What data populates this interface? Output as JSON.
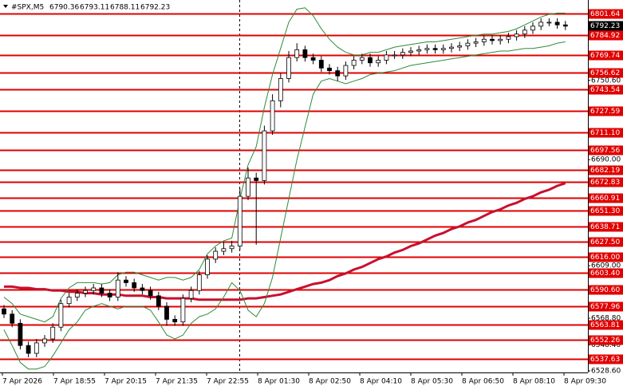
{
  "chart_data": {
    "type": "candlestick",
    "symbol": "#SPX,M5",
    "quote": [
      6790.36,
      6793.11,
      6788.11,
      6792.23
    ],
    "x_labels": [
      "7 Apr 2026",
      "7 Apr 18:55",
      "7 Apr 20:15",
      "7 Apr 21:35",
      "7 Apr 22:55",
      "8 Apr 01:30",
      "8 Apr 02:50",
      "8 Apr 04:10",
      "8 Apr 05:30",
      "8 Apr 06:50",
      "8 Apr 08:10",
      "8 Apr 09:30"
    ],
    "ylim": [
      6527.4,
      6812.0
    ],
    "yticks": [
      {
        "value": 6750.6,
        "label": "6750.60"
      },
      {
        "value": 6690,
        "label": "6690.00"
      },
      {
        "value": 6609,
        "label": "6609.00"
      },
      {
        "value": 6568.8,
        "label": "6568.80"
      },
      {
        "value": 6548.4,
        "label": "6548.40"
      },
      {
        "value": 6528.6,
        "label": "6528.60"
      }
    ],
    "levels": [
      6801.64,
      6784.92,
      6769.74,
      6756.62,
      6743.54,
      6727.59,
      {
        "value": 6711.1,
        "label": "6711.10"
      },
      6697.56,
      6682.19,
      6672.83,
      6660.91,
      {
        "value": 6651.3,
        "label": "6651.30"
      },
      6638.71,
      {
        "value": 6627.5,
        "label": "6627.50"
      },
      {
        "value": 6616,
        "label": "6616.00"
      },
      {
        "value": 6603.4,
        "label": "6603.40"
      },
      {
        "value": 6590.6,
        "label": "6590.60"
      },
      6577.96,
      6563.81,
      6552.26,
      6537.63
    ],
    "level_color": "#e00000",
    "open": [
      6576,
      6572,
      6565,
      6548,
      6542,
      6550,
      6553,
      6562,
      6580,
      6585,
      6588,
      6590,
      6592,
      6588,
      6585,
      6598,
      6596,
      6592,
      6590,
      6586,
      6578,
      6568,
      6566,
      6584,
      6590,
      6602,
      6614,
      6620,
      6622,
      6624,
      6662,
      6676,
      6674,
      6712,
      6735,
      6752,
      6768,
      6774,
      6768,
      6766,
      6760,
      6758,
      6754,
      6762,
      6766,
      6768,
      6764,
      6766,
      6770,
      6770,
      6772,
      6773,
      6774,
      6775,
      6774,
      6775,
      6776,
      6777,
      6779,
      6780,
      6782,
      6781,
      6782,
      6784,
      6786,
      6789,
      6792,
      6795,
      6795,
      6793
    ],
    "high": [
      6579,
      6575,
      6568,
      6551,
      6553,
      6556,
      6565,
      6583,
      6588,
      6591,
      6593,
      6595,
      6595,
      6591,
      6604,
      6601,
      6599,
      6595,
      6593,
      6589,
      6581,
      6571,
      6587,
      6593,
      6605,
      6617,
      6623,
      6627,
      6628,
      6668,
      6684,
      6680,
      6716,
      6740,
      6756,
      6773,
      6779,
      6777,
      6771,
      6769,
      6763,
      6761,
      6765,
      6769,
      6771,
      6771,
      6769,
      6773,
      6773,
      6775,
      6776,
      6777,
      6778,
      6778,
      6778,
      6779,
      6780,
      6782,
      6783,
      6785,
      6785,
      6785,
      6787,
      6789,
      6792,
      6795,
      6798,
      6798,
      6798,
      6796
    ],
    "low": [
      6569,
      6562,
      6545,
      6539,
      6539,
      6547,
      6550,
      6559,
      6577,
      6582,
      6585,
      6587,
      6585,
      6582,
      6582,
      6593,
      6589,
      6587,
      6583,
      6575,
      6563,
      6563,
      6563,
      6581,
      6587,
      6599,
      6611,
      6617,
      6619,
      6621,
      6659,
      6625,
      6671,
      6709,
      6730,
      6749,
      6765,
      6765,
      6763,
      6757,
      6755,
      6750,
      6751,
      6759,
      6763,
      6761,
      6761,
      6763,
      6767,
      6767,
      6769,
      6770,
      6771,
      6771,
      6771,
      6772,
      6773,
      6774,
      6776,
      6777,
      6778,
      6778,
      6779,
      6781,
      6783,
      6786,
      6789,
      6792,
      6790,
      6789
    ],
    "close": [
      6572,
      6565,
      6548,
      6542,
      6550,
      6553,
      6562,
      6580,
      6585,
      6588,
      6590,
      6592,
      6588,
      6585,
      6598,
      6596,
      6592,
      6590,
      6586,
      6578,
      6568,
      6566,
      6584,
      6590,
      6602,
      6614,
      6620,
      6622,
      6624,
      6662,
      6676,
      6674,
      6712,
      6735,
      6752,
      6768,
      6774,
      6768,
      6766,
      6760,
      6758,
      6754,
      6762,
      6766,
      6768,
      6764,
      6766,
      6770,
      6770,
      6772,
      6773,
      6774,
      6775,
      6774,
      6775,
      6776,
      6777,
      6779,
      6780,
      6782,
      6781,
      6782,
      6784,
      6786,
      6789,
      6792,
      6795,
      6795,
      6793,
      6792
    ],
    "lines": [
      {
        "color": "#c8102e",
        "width": 3,
        "values": [
          6593,
          6593,
          6592,
          6592,
          6591,
          6591,
          6590,
          6590,
          6589,
          6589,
          6588,
          6588,
          6587,
          6587,
          6587,
          6586,
          6586,
          6586,
          6585,
          6585,
          6584,
          6584,
          6584,
          6584,
          6583,
          6583,
          6583,
          6583,
          6583,
          6583,
          6584,
          6584,
          6585,
          6586,
          6587,
          6589,
          6591,
          6593,
          6595,
          6596,
          6598,
          6601,
          6603,
          6606,
          6608,
          6611,
          6614,
          6616,
          6619,
          6621,
          6624,
          6626,
          6629,
          6632,
          6634,
          6637,
          6639,
          6642,
          6644,
          6647,
          6650,
          6652,
          6655,
          6657,
          6660,
          6662,
          6665,
          6667,
          6670,
          6672
        ]
      },
      {
        "color": "#2e8b3a",
        "width": 1,
        "values": [
          6585,
          6580,
          6572,
          6570,
          6568,
          6566,
          6570,
          6584,
          6592,
          6596,
          6596,
          6596,
          6595,
          6596,
          6602,
          6604,
          6604,
          6602,
          6600,
          6598,
          6600,
          6600,
          6598,
          6600,
          6606,
          6618,
          6624,
          6628,
          6630,
          6660,
          6686,
          6700,
          6730,
          6755,
          6775,
          6795,
          6805,
          6806,
          6800,
          6790,
          6782,
          6776,
          6772,
          6770,
          6770,
          6772,
          6772,
          6774,
          6776,
          6777,
          6778,
          6779,
          6780,
          6780,
          6781,
          6782,
          6783,
          6784,
          6785,
          6786,
          6786,
          6787,
          6788,
          6790,
          6793,
          6796,
          6799,
          6801,
          6802,
          6802
        ]
      },
      {
        "color": "#2e8b3a",
        "width": 1,
        "values": [
          6560,
          6548,
          6535,
          6530,
          6530,
          6532,
          6540,
          6550,
          6560,
          6566,
          6575,
          6578,
          6580,
          6578,
          6576,
          6578,
          6578,
          6578,
          6575,
          6566,
          6556,
          6553,
          6556,
          6565,
          6570,
          6572,
          6576,
          6585,
          6596,
          6590,
          6575,
          6570,
          6580,
          6600,
          6630,
          6660,
          6690,
          6715,
          6740,
          6750,
          6752,
          6750,
          6748,
          6750,
          6752,
          6755,
          6756,
          6757,
          6758,
          6760,
          6762,
          6763,
          6764,
          6765,
          6766,
          6767,
          6768,
          6769,
          6770,
          6771,
          6772,
          6773,
          6773,
          6774,
          6775,
          6775,
          6776,
          6777,
          6779,
          6780
        ]
      }
    ]
  }
}
